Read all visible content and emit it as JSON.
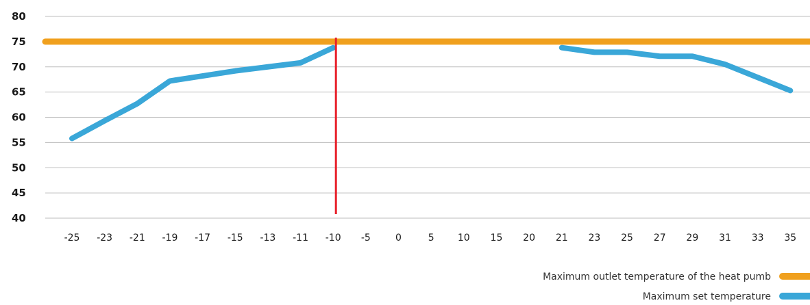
{
  "chart_data": {
    "type": "line",
    "title": "",
    "xlabel": "",
    "ylabel": "",
    "categories": [
      "-25",
      "-23",
      "-21",
      "-19",
      "-17",
      "-15",
      "-13",
      "-11",
      "-10",
      "-5",
      "0",
      "5",
      "10",
      "15",
      "20",
      "21",
      "23",
      "25",
      "27",
      "29",
      "31",
      "33",
      "35"
    ],
    "y_ticks": [
      "80",
      "75",
      "70",
      "65",
      "60",
      "55",
      "50",
      "45",
      "40"
    ],
    "ylim": [
      40,
      80
    ],
    "grid": "horizontal",
    "legend_position": "bottom-right",
    "series": [
      {
        "name": "Maximum outlet temperature of the heat pumb",
        "color": "#f0a01e",
        "constant": 75
      },
      {
        "name": "Maximum set temperature",
        "color": "#3aa7d8",
        "segments": [
          {
            "categories": [
              "-25",
              "-23",
              "-21",
              "-19",
              "-17",
              "-15",
              "-13",
              "-11",
              "-10"
            ],
            "values": [
              55.8,
              59.3,
              62.7,
              67.2,
              68.2,
              69.2,
              70.0,
              70.8,
              73.8
            ]
          },
          {
            "categories": [
              "21",
              "23",
              "25",
              "27",
              "29",
              "31",
              "33",
              "35"
            ],
            "values": [
              73.8,
              72.9,
              72.9,
              72.1,
              72.1,
              70.5,
              67.9,
              65.3
            ]
          }
        ]
      }
    ],
    "marker_line": {
      "category": "-10",
      "color": "#e8202a"
    }
  }
}
